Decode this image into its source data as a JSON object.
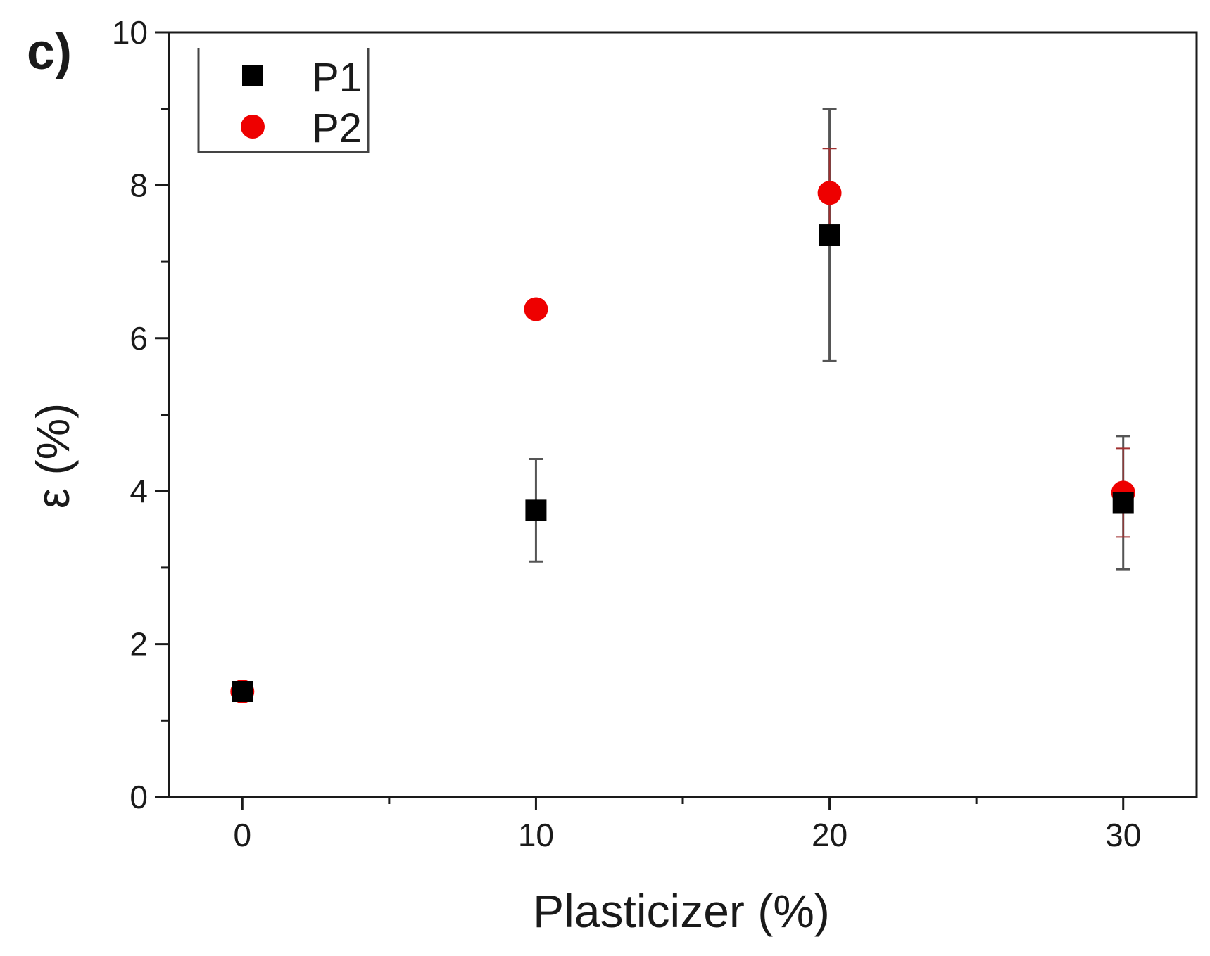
{
  "chart_data": {
    "type": "scatter",
    "panel_label": "c)",
    "xlabel": "Plasticizer (%)",
    "ylabel": "ε (%)",
    "xlim": [
      -2.5,
      32.5
    ],
    "ylim": [
      0,
      10
    ],
    "xticks": [
      0,
      10,
      20,
      30
    ],
    "yticks": [
      0,
      2,
      4,
      6,
      8,
      10
    ],
    "x": [
      0,
      10,
      20,
      30
    ],
    "legend_position": "top-left",
    "grid": false,
    "series": [
      {
        "name": "P1",
        "marker": "square",
        "color": "#000000",
        "errorbar_color": "#555555",
        "values": [
          1.38,
          3.75,
          7.35,
          3.85
        ],
        "errors": [
          0,
          0.67,
          1.65,
          0.87
        ]
      },
      {
        "name": "P2",
        "marker": "circle",
        "color": "#ee0000",
        "errorbar_color": "#a03030",
        "values": [
          1.38,
          6.38,
          7.9,
          3.98
        ],
        "errors": [
          0,
          0,
          0.58,
          0.58
        ]
      }
    ]
  }
}
